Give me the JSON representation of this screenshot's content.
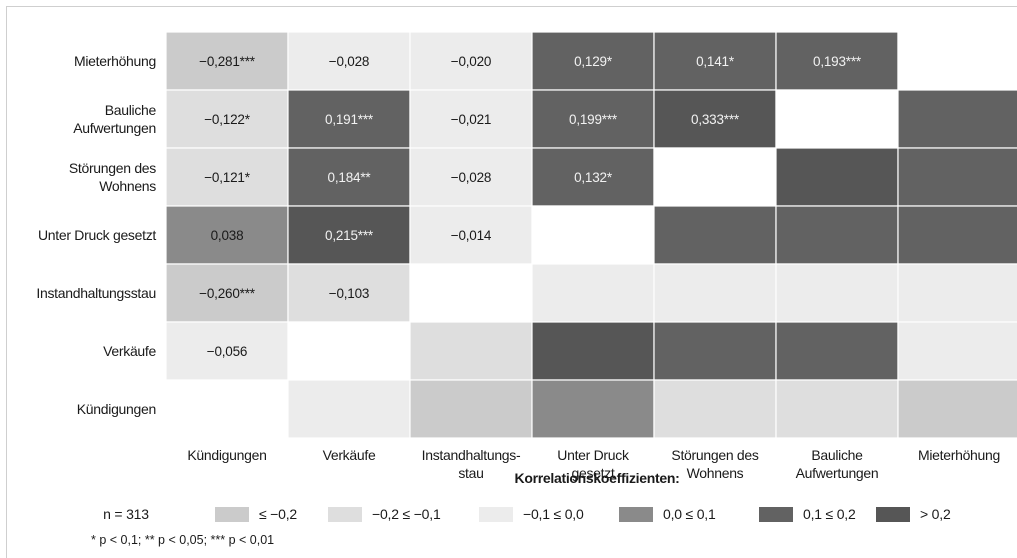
{
  "chart_data": {
    "type": "heatmap",
    "row_labels": [
      [
        "Mieterhöhung"
      ],
      [
        "Bauliche",
        "Aufwertungen"
      ],
      [
        "Störungen des",
        "Wohnens"
      ],
      [
        "Unter Druck gesetzt"
      ],
      [
        "Instandhaltungsstau"
      ],
      [
        "Verkäufe"
      ],
      [
        "Kündigungen"
      ]
    ],
    "col_labels": [
      [
        "Kündigungen"
      ],
      [
        "Verkäufe"
      ],
      [
        "Instandhaltungs-",
        "stau"
      ],
      [
        "Unter Druck",
        "gesetzt"
      ],
      [
        "Störungen des",
        "Wohnens"
      ],
      [
        "Bauliche",
        "Aufwertungen"
      ],
      [
        "Mieterhöhung"
      ]
    ],
    "cells": [
      [
        "−0,281***",
        "−0,028",
        "−0,020",
        "0,129*",
        "0,141*",
        "0,193***",
        ""
      ],
      [
        "−0,122*",
        "0,191***",
        "−0,021",
        "0,199***",
        "0,333***",
        "",
        ""
      ],
      [
        "−0,121*",
        "0,184**",
        "−0,028",
        "0,132*",
        "",
        "",
        ""
      ],
      [
        "0,038",
        "0,215***",
        "−0,014",
        "",
        "",
        "",
        ""
      ],
      [
        "−0,260***",
        "−0,103",
        "",
        "",
        "",
        "",
        ""
      ],
      [
        "−0,056",
        "",
        "",
        "",
        "",
        "",
        ""
      ],
      [
        "",
        "",
        "",
        "",
        "",
        "",
        ""
      ]
    ],
    "values": [
      [
        -0.281,
        -0.028,
        -0.02,
        0.129,
        0.141,
        0.193,
        null
      ],
      [
        -0.122,
        0.191,
        -0.021,
        0.199,
        0.333,
        null,
        0.193
      ],
      [
        -0.121,
        0.184,
        -0.028,
        0.132,
        null,
        0.333,
        0.141
      ],
      [
        0.038,
        0.215,
        -0.014,
        null,
        0.132,
        0.199,
        0.129
      ],
      [
        -0.26,
        -0.103,
        null,
        -0.014,
        -0.028,
        -0.021,
        -0.02
      ],
      [
        -0.056,
        null,
        -0.103,
        0.215,
        0.184,
        0.191,
        -0.028
      ],
      [
        null,
        -0.056,
        -0.26,
        0.038,
        -0.121,
        -0.122,
        -0.281
      ]
    ],
    "legend": {
      "title": "Korrelationskoeffizienten:",
      "n_label": "n = 313",
      "items": [
        {
          "label": "≤ −0,2",
          "color": "#cbcbcb"
        },
        {
          "label": "−0,2 ≤ −0,1",
          "color": "#dedede"
        },
        {
          "label": "−0,1 ≤ 0,0",
          "color": "#ececec"
        },
        {
          "label": "0,0 ≤ 0,1",
          "color": "#8a8a8a"
        },
        {
          "label": "0,1 ≤ 0,2",
          "color": "#626262"
        },
        {
          "label": "> 0,2",
          "color": "#565656"
        }
      ]
    },
    "footnote": "* p < 0,1; ** p < 0,05; *** p < 0,01"
  },
  "colors": {
    "le_m02": "#cbcbcb",
    "m02_m01": "#dedede",
    "m01_0": "#ececec",
    "p0_01": "#8a8a8a",
    "p01_02": "#626262",
    "gt02": "#565656",
    "diagonal": "#ffffff"
  }
}
